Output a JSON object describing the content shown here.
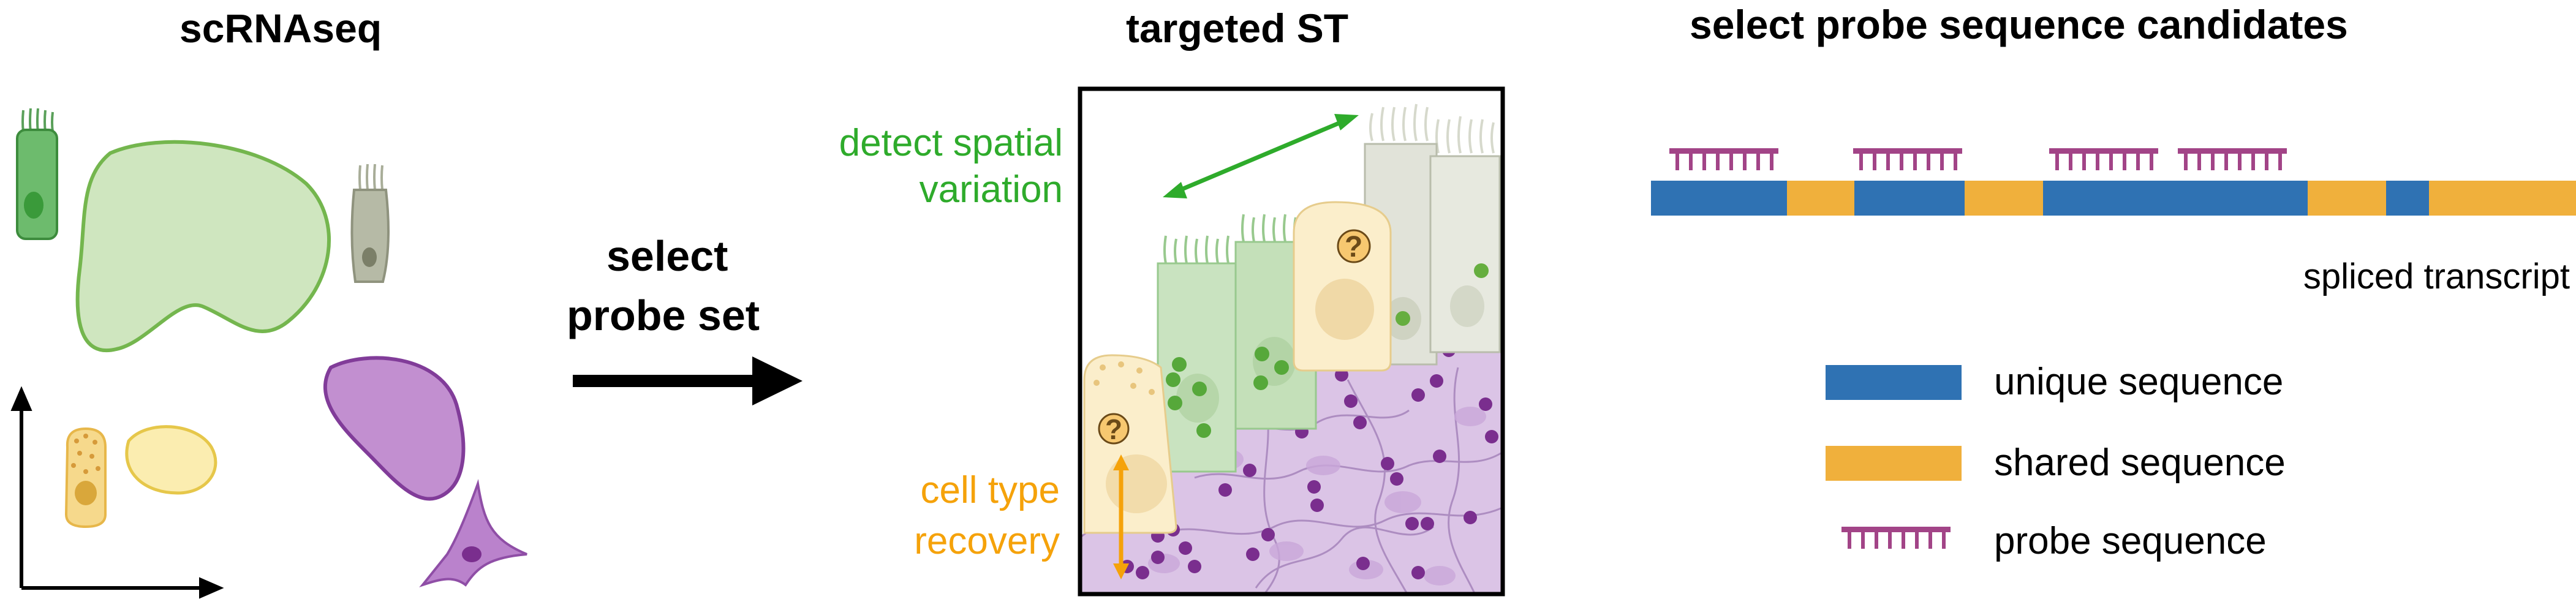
{
  "panels": {
    "scrnaseq_title": "scRNAseq",
    "targeted_title": "targeted ST",
    "probe_title": "select probe sequence candidates"
  },
  "arrow_label": {
    "line1": "select",
    "line2": "probe set"
  },
  "annotations": {
    "spatial_line1": "detect spatial",
    "spatial_line2": "variation",
    "recovery_line1": "cell type",
    "recovery_line2": "recovery",
    "question_mark": "?"
  },
  "transcript": {
    "label": "spliced transcript"
  },
  "legend": {
    "unique": "unique sequence",
    "shared": "shared sequence",
    "probe": "probe sequence"
  },
  "colors": {
    "unique": "#2f72b3",
    "shared": "#f0b03c",
    "probe": "#a24487",
    "spatial": "#2eab2b",
    "recovery": "#f5a20a"
  }
}
